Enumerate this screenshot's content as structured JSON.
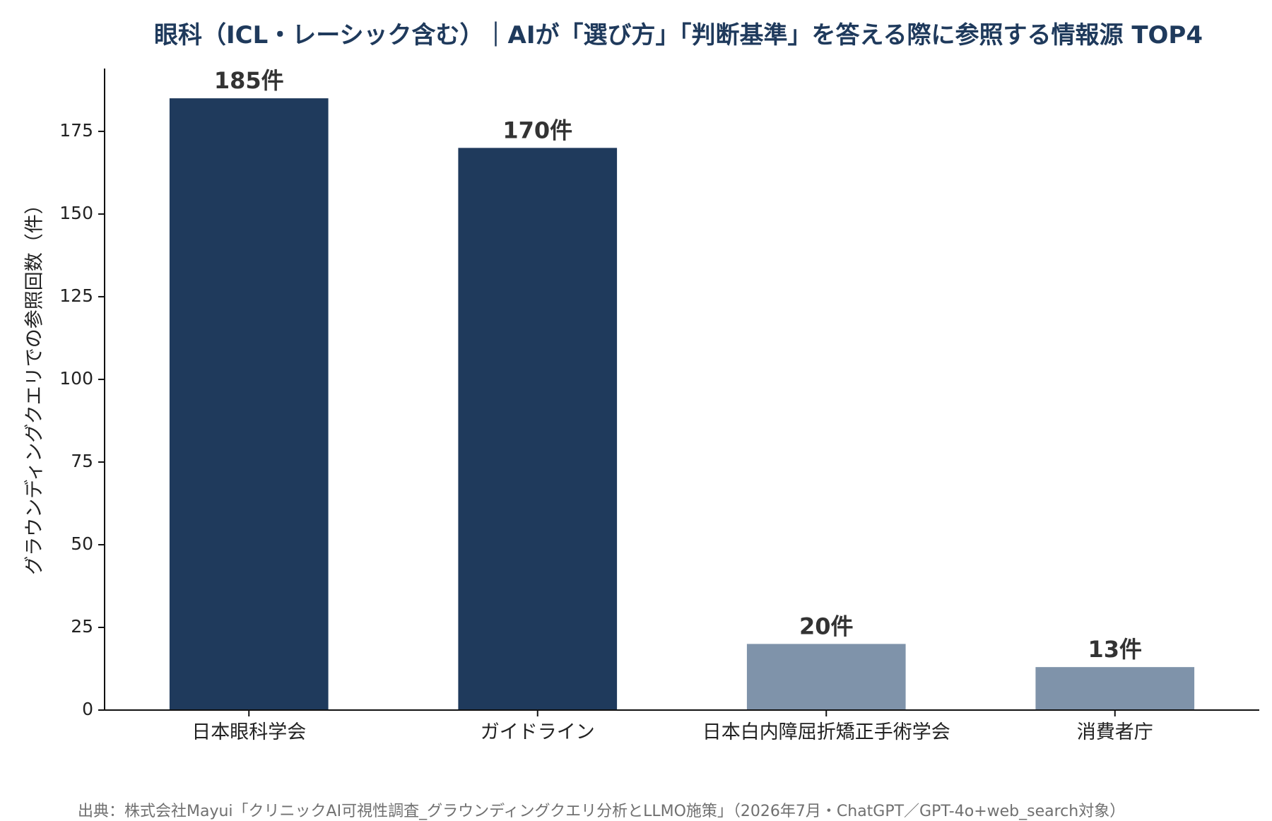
{
  "chart_data": {
    "type": "bar",
    "title": "眼科（ICL・レーシック含む）｜AIが「選び方」「判断基準」を答える際に参照する情報源 TOP4",
    "ylabel": "グラウンディングクエリでの参照回数（件）",
    "xlabel": "",
    "categories": [
      "日本眼科学会",
      "ガイドライン",
      "日本白内障屈折矯正手術学会",
      "消費者庁"
    ],
    "values": [
      185,
      170,
      20,
      13
    ],
    "data_labels": [
      "185件",
      "170件",
      "20件",
      "13件"
    ],
    "bar_colors": [
      "#1f3a5c",
      "#1f3a5c",
      "#7f93aa",
      "#7f93aa"
    ],
    "ylim": [
      0,
      194
    ],
    "yticks": [
      0,
      25,
      50,
      75,
      100,
      125,
      150,
      175
    ],
    "grid": false,
    "legend": "none"
  },
  "source_note": "出典：株式会社Mayui「クリニックAI可視性調査_グラウンディングクエリ分析とLLMO施策」（2026年7月・ChatGPT／GPT-4o+web_search対象）"
}
